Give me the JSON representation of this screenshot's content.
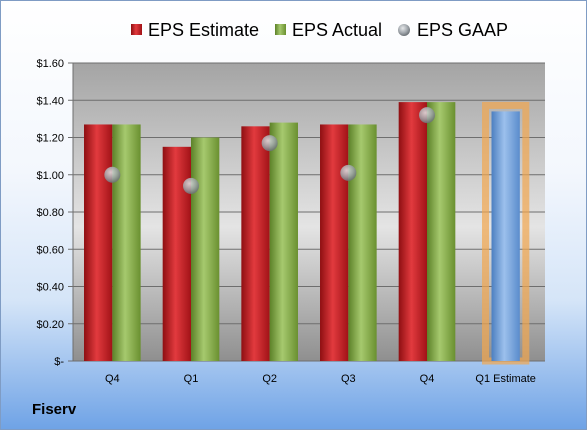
{
  "company": "Fiserv",
  "chart_data": {
    "type": "bar",
    "categories": [
      "Q4",
      "Q1",
      "Q2",
      "Q3",
      "Q4",
      "Q1 Estimate"
    ],
    "series": [
      {
        "name": "EPS Estimate",
        "values": [
          1.27,
          1.15,
          1.26,
          1.27,
          1.39,
          null
        ],
        "color": "#c0171d"
      },
      {
        "name": "EPS Actual",
        "values": [
          1.27,
          1.2,
          1.28,
          1.27,
          1.39,
          null
        ],
        "color": "#7ca640"
      },
      {
        "name": "EPS GAAP",
        "type": "scatter",
        "values": [
          1.0,
          0.94,
          1.17,
          1.01,
          1.32,
          null
        ],
        "color": "#9aa4aa"
      },
      {
        "name": "",
        "values": [
          null,
          null,
          null,
          null,
          null,
          1.34
        ],
        "color": "#6b9bd6",
        "highlight": "#f2a64f"
      }
    ],
    "ylim": [
      0,
      1.6
    ],
    "yticks": [
      0,
      0.2,
      0.4,
      0.6,
      0.8,
      1.0,
      1.2,
      1.4,
      1.6
    ],
    "ytick_labels": [
      "$-",
      "$0.20",
      "$0.40",
      "$0.60",
      "$0.80",
      "$1.00",
      "$1.20",
      "$1.40",
      "$1.60"
    ],
    "grid": true,
    "legend_position": "top"
  }
}
